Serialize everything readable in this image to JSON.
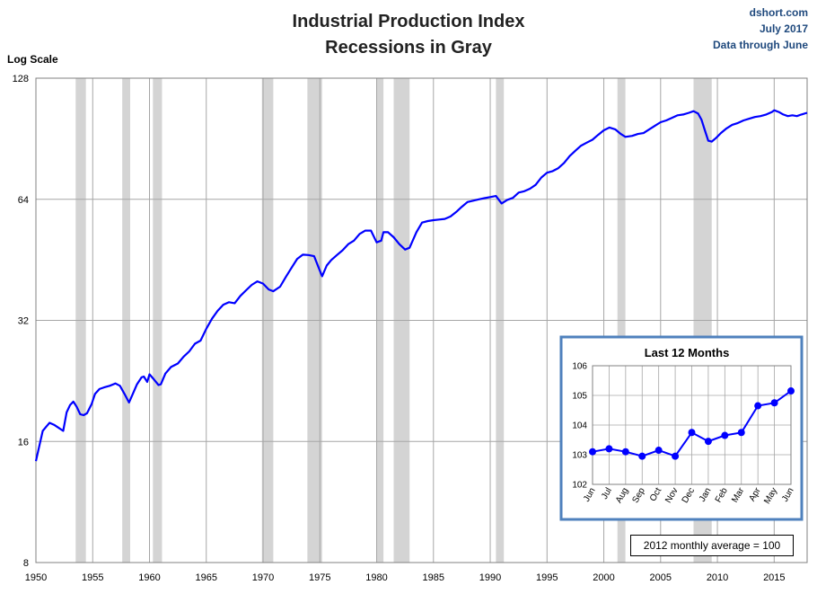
{
  "header": {
    "title_line1": "Industrial Production Index",
    "title_line2": "Recessions in Gray",
    "source_line1": "dshort.com",
    "source_line2": "July 2017",
    "source_line3": "Data through June"
  },
  "colors": {
    "series": "#0000ff",
    "recession": "#d4d4d4",
    "grid": "#a6a6a6",
    "inset_border": "#4f81bd"
  },
  "chart_data": [
    {
      "type": "line",
      "title": "Industrial Production Index",
      "subtitle": "Recessions in Gray",
      "ylabel": "Log Scale",
      "y_scale": "log2",
      "ylim": [
        8,
        128
      ],
      "y_ticks": [
        8,
        16,
        32,
        64,
        128
      ],
      "xlim": [
        1950,
        2017.9
      ],
      "x_ticks": [
        1950,
        1955,
        1960,
        1965,
        1970,
        1975,
        1980,
        1985,
        1990,
        1995,
        2000,
        2005,
        2010,
        2015
      ],
      "recessions": [
        [
          1953.5,
          1954.4
        ],
        [
          1957.6,
          1958.3
        ],
        [
          1960.3,
          1961.1
        ],
        [
          1969.9,
          1970.9
        ],
        [
          1973.9,
          1975.2
        ],
        [
          1980.0,
          1980.6
        ],
        [
          1981.5,
          1982.9
        ],
        [
          1990.5,
          1991.2
        ],
        [
          2001.2,
          2001.9
        ],
        [
          2007.9,
          2009.5
        ]
      ],
      "series": [
        {
          "x": [
            1950.0,
            1950.3,
            1950.6,
            1950.9,
            1951.2,
            1951.6,
            1952.0,
            1952.4,
            1952.7,
            1953.0,
            1953.3,
            1953.6,
            1953.9,
            1954.2,
            1954.5,
            1954.9,
            1955.2,
            1955.6,
            1956.0,
            1956.5,
            1957.0,
            1957.4,
            1957.8,
            1958.2,
            1958.5,
            1958.9,
            1959.3,
            1959.5,
            1959.8,
            1960.0,
            1960.4,
            1960.8,
            1961.0,
            1961.4,
            1961.9,
            1962.5,
            1963.0,
            1963.5,
            1964.0,
            1964.5,
            1965.0,
            1965.5,
            1966.0,
            1966.5,
            1967.0,
            1967.5,
            1968.0,
            1968.5,
            1969.0,
            1969.5,
            1970.0,
            1970.5,
            1970.9,
            1971.5,
            1972.0,
            1972.5,
            1973.0,
            1973.5,
            1974.0,
            1974.5,
            1975.0,
            1975.2,
            1975.6,
            1976.0,
            1976.5,
            1977.0,
            1977.5,
            1978.0,
            1978.5,
            1979.0,
            1979.5,
            1980.0,
            1980.4,
            1980.6,
            1981.0,
            1981.5,
            1982.0,
            1982.5,
            1982.9,
            1983.5,
            1984.0,
            1984.5,
            1985.0,
            1985.5,
            1986.0,
            1986.5,
            1987.0,
            1987.5,
            1988.0,
            1988.5,
            1989.0,
            1989.5,
            1990.0,
            1990.5,
            1991.0,
            1991.5,
            1992.0,
            1992.5,
            1993.0,
            1993.5,
            1994.0,
            1994.5,
            1995.0,
            1995.5,
            1996.0,
            1996.5,
            1997.0,
            1997.5,
            1998.0,
            1998.5,
            1999.0,
            1999.5,
            2000.0,
            2000.5,
            2001.0,
            2001.5,
            2001.9,
            2002.5,
            2003.0,
            2003.5,
            2004.0,
            2004.5,
            2005.0,
            2005.5,
            2006.0,
            2006.5,
            2007.0,
            2007.5,
            2007.9,
            2008.3,
            2008.6,
            2008.9,
            2009.2,
            2009.5,
            2009.9,
            2010.3,
            2010.8,
            2011.3,
            2011.8,
            2012.3,
            2012.8,
            2013.3,
            2013.8,
            2014.3,
            2014.8,
            2015.0,
            2015.4,
            2015.8,
            2016.2,
            2016.6,
            2017.0,
            2017.4,
            2017.9
          ],
          "values": [
            14.3,
            15.6,
            17.0,
            17.4,
            17.8,
            17.6,
            17.3,
            17.0,
            18.9,
            19.7,
            20.1,
            19.5,
            18.7,
            18.6,
            18.8,
            19.8,
            21.0,
            21.6,
            21.8,
            22.0,
            22.3,
            22.0,
            21.0,
            20.0,
            20.9,
            22.2,
            23.1,
            23.2,
            22.5,
            23.5,
            22.8,
            22.1,
            22.2,
            23.6,
            24.5,
            25.0,
            26.0,
            26.8,
            28.0,
            28.5,
            30.5,
            32.3,
            33.8,
            35.0,
            35.5,
            35.3,
            36.8,
            38.0,
            39.2,
            40.0,
            39.5,
            38.2,
            37.8,
            38.8,
            41.0,
            43.2,
            45.5,
            46.6,
            46.5,
            46.2,
            42.5,
            41.2,
            43.8,
            45.2,
            46.5,
            47.8,
            49.5,
            50.5,
            52.5,
            53.5,
            53.5,
            50.0,
            50.5,
            53.0,
            53.0,
            51.5,
            49.5,
            48.0,
            48.5,
            53.0,
            56.0,
            56.5,
            56.8,
            57.0,
            57.2,
            58.0,
            59.5,
            61.3,
            63.0,
            63.5,
            64.0,
            64.4,
            64.8,
            65.2,
            62.5,
            63.8,
            64.5,
            66.5,
            67.0,
            68.0,
            69.5,
            72.5,
            74.5,
            75.2,
            76.5,
            78.8,
            82.0,
            84.5,
            87.0,
            88.5,
            90.0,
            92.5,
            95.0,
            96.5,
            95.5,
            93.0,
            91.5,
            92.0,
            93.0,
            93.5,
            95.5,
            97.5,
            99.5,
            100.5,
            102.0,
            103.5,
            104.0,
            105.0,
            106.0,
            104.5,
            101.0,
            95.0,
            89.5,
            89.0,
            91.0,
            93.5,
            96.0,
            98.0,
            99.0,
            100.5,
            101.5,
            102.5,
            103.0,
            104.0,
            105.5,
            106.5,
            105.5,
            104.0,
            103.0,
            103.5,
            103.0,
            104.0,
            105.0
          ]
        }
      ]
    },
    {
      "type": "line",
      "title": "Last 12 Months",
      "ylim": [
        102,
        106
      ],
      "y_ticks": [
        102,
        103,
        104,
        105,
        106
      ],
      "categories": [
        "Jun",
        "Jul",
        "Aug",
        "Sep",
        "Oct",
        "Nov",
        "Dec",
        "Jan",
        "Feb",
        "Mar",
        "Apr",
        "May",
        "Jun"
      ],
      "values": [
        103.1,
        103.2,
        103.1,
        102.95,
        103.15,
        102.95,
        103.75,
        103.45,
        103.65,
        103.75,
        104.65,
        104.75,
        105.15
      ]
    }
  ],
  "note": "2012 monthly average = 100"
}
